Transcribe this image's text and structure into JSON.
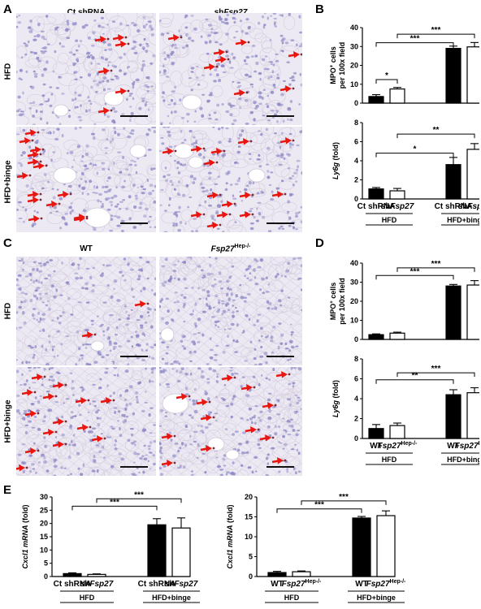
{
  "panels": {
    "A": {
      "letter": "A",
      "col_titles": [
        "Ct shRNA",
        "shFsp27"
      ],
      "row_labels": [
        "HFD",
        "HFD+binge"
      ]
    },
    "C": {
      "letter": "C",
      "col_titles": [
        "WT",
        "Fsp27Hep-/-"
      ],
      "row_labels": [
        "HFD",
        "HFD+binge"
      ]
    },
    "B": {
      "letter": "B"
    },
    "D": {
      "letter": "D"
    },
    "E": {
      "letter": "E"
    }
  },
  "colors": {
    "filled_bar": "#000000",
    "open_bar": "#ffffff",
    "arrow": "#e8160f",
    "tissue": "#ede9f2",
    "nuclei": "#8a86c6"
  },
  "chart_data": [
    {
      "id": "B-top",
      "type": "bar",
      "categories": [
        "Ct shRNA",
        "shFsp27",
        "Ct shRNA",
        "shFsp27"
      ],
      "groups": [
        "HFD",
        "HFD+binge"
      ],
      "values": [
        3.5,
        7.5,
        29,
        29.8
      ],
      "errors": [
        1.0,
        0.8,
        1.2,
        2.3
      ],
      "fills": [
        "filled",
        "open",
        "filled",
        "open"
      ],
      "ylabel": "MPO+ cells per 100x field",
      "ylim": [
        0,
        40
      ],
      "yticks": [
        0,
        10,
        20,
        30,
        40
      ],
      "significance": [
        {
          "from": 0,
          "to": 1,
          "label": "*"
        },
        {
          "from": 1,
          "to": 3,
          "label": "***"
        },
        {
          "from": 0,
          "to": 2,
          "label": "***"
        }
      ]
    },
    {
      "id": "B-bottom",
      "type": "bar",
      "categories": [
        "Ct shRNA",
        "shFsp27",
        "Ct shRNA",
        "shFsp27"
      ],
      "groups": [
        "HFD",
        "HFD+binge"
      ],
      "values": [
        1.05,
        0.85,
        3.6,
        5.2
      ],
      "errors": [
        0.15,
        0.25,
        0.75,
        0.6
      ],
      "fills": [
        "filled",
        "open",
        "filled",
        "open"
      ],
      "ylabel": "Ly6g (fold)",
      "ylim": [
        0,
        8
      ],
      "yticks": [
        0,
        2,
        4,
        6,
        8
      ],
      "significance": [
        {
          "from": 1,
          "to": 3,
          "label": "**"
        },
        {
          "from": 0,
          "to": 2,
          "label": "*"
        }
      ]
    },
    {
      "id": "D-top",
      "type": "bar",
      "categories": [
        "WT",
        "Fsp27Hep-/-",
        "WT",
        "Fsp27Hep-/-"
      ],
      "groups": [
        "HFD",
        "HFD+binge"
      ],
      "values": [
        2.5,
        3.3,
        28,
        28.5
      ],
      "errors": [
        0.4,
        0.5,
        0.8,
        2.3
      ],
      "fills": [
        "filled",
        "open",
        "filled",
        "open"
      ],
      "ylabel": "MPO+ cells per 100x field",
      "ylim": [
        0,
        40
      ],
      "yticks": [
        0,
        10,
        20,
        30,
        40
      ],
      "significance": [
        {
          "from": 0,
          "to": 2,
          "label": "***"
        },
        {
          "from": 1,
          "to": 3,
          "label": "***"
        }
      ]
    },
    {
      "id": "D-bottom",
      "type": "bar",
      "categories": [
        "WT",
        "Fsp27Hep-/-",
        "WT",
        "Fsp27Hep-/-"
      ],
      "groups": [
        "HFD",
        "HFD+binge"
      ],
      "values": [
        1.0,
        1.3,
        4.4,
        4.6
      ],
      "errors": [
        0.4,
        0.25,
        0.5,
        0.5
      ],
      "fills": [
        "filled",
        "open",
        "filled",
        "open"
      ],
      "ylabel": "Ly6g (fold)",
      "ylim": [
        0,
        8
      ],
      "yticks": [
        0,
        2,
        4,
        6,
        8
      ],
      "significance": [
        {
          "from": 0,
          "to": 2,
          "label": "**"
        },
        {
          "from": 1,
          "to": 3,
          "label": "***"
        }
      ]
    },
    {
      "id": "E-left",
      "type": "bar",
      "categories": [
        "Ct shRNA",
        "shFsp27",
        "Ct shRNA",
        "shFsp27"
      ],
      "groups": [
        "HFD",
        "HFD+binge"
      ],
      "values": [
        1.1,
        0.8,
        19.5,
        18.3
      ],
      "errors": [
        0.3,
        0.2,
        2.3,
        3.8
      ],
      "fills": [
        "filled",
        "open",
        "filled",
        "open"
      ],
      "ylabel": "Cxcl1 mRNA (fold)",
      "ylim": [
        0,
        30
      ],
      "yticks": [
        0,
        5,
        10,
        15,
        20,
        25,
        30
      ],
      "significance": [
        {
          "from": 0,
          "to": 2,
          "label": "***"
        },
        {
          "from": 1,
          "to": 3,
          "label": "***"
        }
      ]
    },
    {
      "id": "E-right",
      "type": "bar",
      "categories": [
        "WT",
        "Fsp27Hep-/-",
        "WT",
        "Fsp27Hep-/-"
      ],
      "groups": [
        "HFD",
        "HFD+binge"
      ],
      "values": [
        1.0,
        1.2,
        14.7,
        15.3
      ],
      "errors": [
        0.3,
        0.2,
        0.4,
        1.2
      ],
      "fills": [
        "filled",
        "open",
        "filled",
        "open"
      ],
      "ylabel": "Cxcl1 mRNA (fold)",
      "ylim": [
        0,
        20
      ],
      "yticks": [
        0,
        5,
        10,
        15,
        20
      ],
      "significance": [
        {
          "from": 0,
          "to": 2,
          "label": "***"
        },
        {
          "from": 1,
          "to": 3,
          "label": "***"
        }
      ]
    }
  ]
}
